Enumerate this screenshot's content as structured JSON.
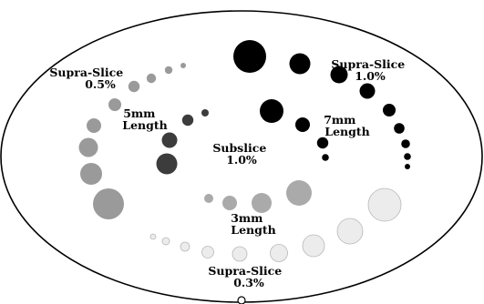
{
  "diagram": {
    "groups": [
      {
        "id": "supra-slice-1-0",
        "label_lines": [
          "Supra-Slice",
          "1.0%"
        ],
        "contrast": "black",
        "fill": "#000000",
        "object_count": 9
      },
      {
        "id": "7mm-length",
        "label_lines": [
          "7mm",
          "Length"
        ],
        "contrast": "black",
        "fill": "#000000",
        "object_count": 4
      },
      {
        "id": "supra-slice-0-5",
        "label_lines": [
          "Supra-Slice",
          "0.5%"
        ],
        "contrast": "mid-gray",
        "fill": "#9a9a9a",
        "object_count": 9
      },
      {
        "id": "5mm-length",
        "label_lines": [
          "5mm",
          "Length"
        ],
        "contrast": "dark-gray",
        "fill": "#3c3c3c",
        "object_count": 4
      },
      {
        "id": "subslice-1-0",
        "label_lines": [
          "Subslice",
          "1.0%"
        ],
        "contrast": "none",
        "fill": "",
        "object_count": 0
      },
      {
        "id": "3mm-length",
        "label_lines": [
          "3mm",
          "Length"
        ],
        "contrast": "gray",
        "fill": "#aaaaaa",
        "object_count": 4
      },
      {
        "id": "supra-slice-0-3",
        "label_lines": [
          "Supra-Slice",
          "0.3%"
        ],
        "contrast": "very-light-gray",
        "fill": "#ececec",
        "object_count": 9
      }
    ],
    "colors": {
      "outline": "#000000",
      "background": "#ffffff",
      "black": "#000000",
      "dark_gray": "#3c3c3c",
      "mid_gray": "#9a9a9a",
      "gray": "#aaaaaa",
      "very_light_gray": "#ececec",
      "faint_outline": "#b8b8b8"
    }
  }
}
